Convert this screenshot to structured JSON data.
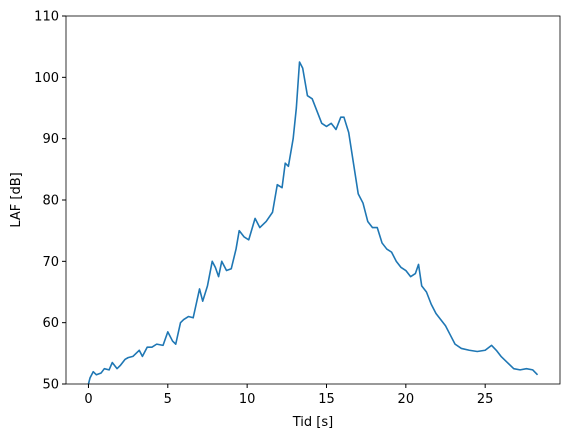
{
  "chart_data": {
    "type": "line",
    "xlabel": "Tid [s]",
    "ylabel": "LAF [dB]",
    "x": [
      0,
      0.1,
      0.3,
      0.5,
      0.8,
      1,
      1.3,
      1.5,
      1.8,
      2.0,
      2.3,
      2.5,
      2.8,
      3.2,
      3.4,
      3.7,
      4.0,
      4.3,
      4.7,
      5.0,
      5.3,
      5.5,
      5.8,
      6.0,
      6.3,
      6.6,
      7.0,
      7.2,
      7.5,
      7.8,
      8.0,
      8.2,
      8.4,
      8.7,
      9.0,
      9.3,
      9.5,
      9.8,
      10.1,
      10.5,
      10.8,
      11.2,
      11.6,
      11.9,
      12.2,
      12.4,
      12.6,
      12.9,
      13.1,
      13.3,
      13.5,
      13.8,
      14.1,
      14.4,
      14.7,
      15.0,
      15.3,
      15.6,
      15.9,
      16.1,
      16.4,
      16.7,
      17.0,
      17.3,
      17.6,
      17.9,
      18.2,
      18.5,
      18.8,
      19.1,
      19.4,
      19.7,
      20.0,
      20.3,
      20.6,
      20.8,
      21.0,
      21.3,
      21.6,
      21.9,
      22.2,
      22.5,
      22.8,
      23.1,
      23.5,
      24.0,
      24.5,
      25.0,
      25.4,
      25.7,
      26.0,
      26.4,
      26.8,
      27.2,
      27.6,
      28.0,
      28.3
    ],
    "series": [
      {
        "name": "LAF",
        "color": "#1f77b4",
        "values": [
          50,
          51,
          52,
          51.5,
          51.8,
          52.5,
          52.3,
          53.5,
          52.5,
          53,
          54,
          54.3,
          54.5,
          55.5,
          54.5,
          56,
          56,
          56.5,
          56.3,
          58.5,
          57,
          56.5,
          60,
          60.5,
          61,
          60.8,
          65.5,
          63.5,
          66,
          70,
          69,
          67.5,
          70,
          68.5,
          68.8,
          72,
          75,
          74,
          73.5,
          77,
          75.5,
          76.5,
          78,
          82.5,
          82,
          86,
          85.5,
          90,
          95,
          102.5,
          101.5,
          97,
          96.5,
          94.5,
          92.5,
          92,
          92.5,
          91.5,
          93.5,
          93.5,
          91,
          86,
          81,
          79.5,
          76.5,
          75.5,
          75.5,
          73,
          72,
          71.5,
          70,
          69,
          68.5,
          67.5,
          68,
          69.5,
          66,
          65,
          63,
          61.5,
          60.5,
          59.5,
          58,
          56.5,
          55.8,
          55.5,
          55.3,
          55.5,
          56.3,
          55.5,
          54.5,
          53.5,
          52.5,
          52.3,
          52.5,
          52.3,
          51.5
        ]
      }
    ],
    "xlim": [
      -1.415,
      29.715
    ],
    "ylim": [
      50,
      110
    ],
    "xticks": [
      0,
      5,
      10,
      15,
      20,
      25
    ],
    "yticks": [
      50,
      60,
      70,
      80,
      90,
      100,
      110
    ]
  }
}
